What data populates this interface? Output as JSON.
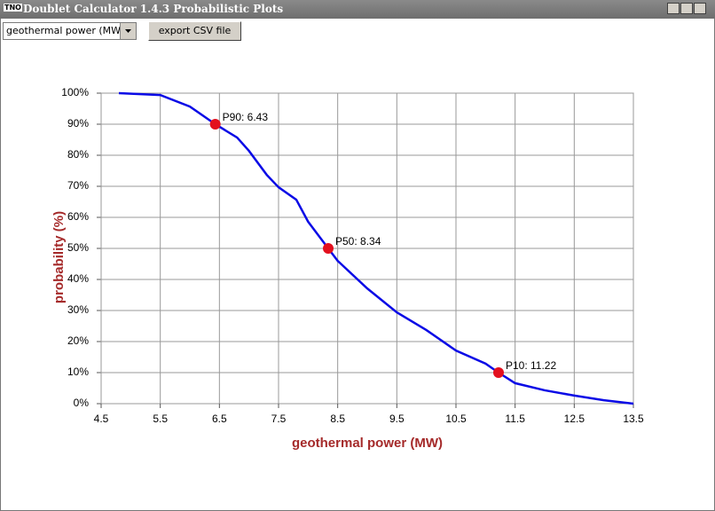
{
  "window": {
    "logo": "TNO",
    "title": "Doublet Calculator 1.4.3 Probabilistic Plots",
    "dropdown": "geothermal power (MW)",
    "button": "export CSV file"
  },
  "chart_data": {
    "type": "line",
    "xlabel": "geothermal power (MW)",
    "ylabel": "probability (%)",
    "xlim": [
      4.5,
      13.5
    ],
    "xticks": [
      4.5,
      5.5,
      6.5,
      7.5,
      8.5,
      9.5,
      10.5,
      11.5,
      12.5,
      13.5
    ],
    "ylim": [
      0,
      100
    ],
    "yticks": [
      {
        "value": 0,
        "label": "0%"
      },
      {
        "value": 10,
        "label": "10%"
      },
      {
        "value": 20,
        "label": "20%"
      },
      {
        "value": 30,
        "label": "30%"
      },
      {
        "value": 40,
        "label": "40%"
      },
      {
        "value": 50,
        "label": "50%"
      },
      {
        "value": 60,
        "label": "60%"
      },
      {
        "value": 70,
        "label": "70%"
      },
      {
        "value": 80,
        "label": "80%"
      },
      {
        "value": 90,
        "label": "90%"
      },
      {
        "value": 100,
        "label": "100%"
      }
    ],
    "grid": true,
    "series": [
      {
        "color": "#0a0ae6",
        "x": [
          4.8,
          5.5,
          6.0,
          6.43,
          6.8,
          7.0,
          7.3,
          7.5,
          7.8,
          8.0,
          8.34,
          8.5,
          9.0,
          9.5,
          10.0,
          10.5,
          11.0,
          11.22,
          11.5,
          12.0,
          12.5,
          13.0,
          13.5
        ],
        "values": [
          100,
          99.4,
          95.7,
          90,
          85.7,
          81.4,
          73.7,
          69.7,
          65.7,
          58.6,
          50,
          46,
          37.1,
          29.4,
          23.7,
          17.1,
          12.9,
          10,
          6.6,
          4.3,
          2.6,
          1.1,
          0
        ]
      }
    ],
    "markers": {
      "color": "#e3101e",
      "labels": [
        "P90: 6.43",
        "P50: 8.34",
        "P10: 11.22"
      ],
      "x": [
        6.43,
        8.34,
        11.22
      ],
      "y": [
        90,
        50,
        10
      ]
    }
  }
}
